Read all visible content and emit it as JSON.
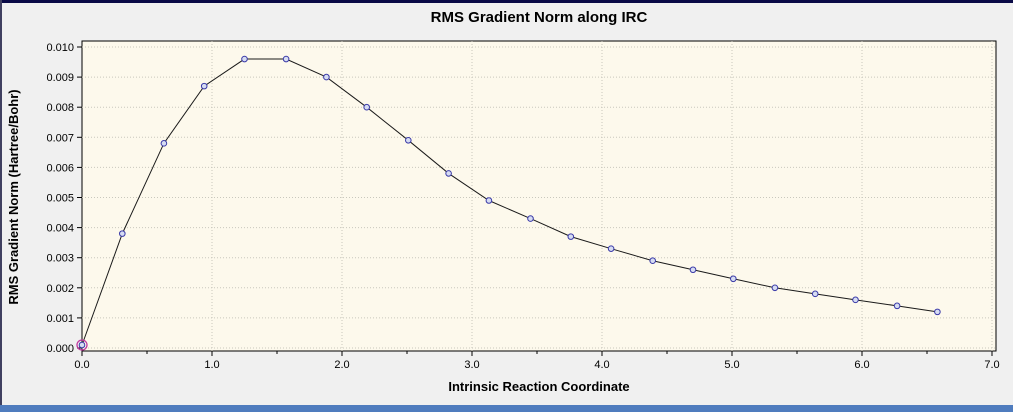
{
  "window": {
    "background": "#f0f0f0",
    "top_border_color": "#0a0a46",
    "left_border_color": "#404060",
    "bottom_bar_color": "#4f7cbe"
  },
  "chart": {
    "title": "RMS Gradient Norm along IRC",
    "xlabel": "Intrinsic Reaction Coordinate",
    "ylabel": "RMS Gradient Norm (Hartree/Bohr)"
  },
  "chart_data": {
    "type": "line",
    "title": "RMS Gradient Norm along IRC",
    "xlabel": "Intrinsic Reaction Coordinate",
    "ylabel": "RMS Gradient Norm (Hartree/Bohr)",
    "xlim": [
      0.0,
      7.0
    ],
    "ylim": [
      0.0,
      0.01
    ],
    "xticks": [
      0.0,
      1.0,
      2.0,
      3.0,
      4.0,
      5.0,
      6.0,
      7.0
    ],
    "xtick_labels": [
      "0.0",
      "1.0",
      "2.0",
      "3.0",
      "4.0",
      "5.0",
      "6.0",
      "7.0"
    ],
    "yticks": [
      0.0,
      0.001,
      0.002,
      0.003,
      0.004,
      0.005,
      0.006,
      0.007,
      0.008,
      0.009,
      0.01
    ],
    "ytick_labels": [
      "0.000",
      "0.001",
      "0.002",
      "0.003",
      "0.004",
      "0.005",
      "0.006",
      "0.007",
      "0.008",
      "0.009",
      "0.010"
    ],
    "grid": true,
    "legend": null,
    "plot_bg": "#fdf9ec",
    "grid_color": "#c9c8bd",
    "line_color": "#1a1a1a",
    "marker_stroke": "#3a3aa8",
    "marker_fill": "#d6dcf2",
    "highlight_stroke": "#c0399f",
    "highlighted_index": 0,
    "x": [
      0.0,
      0.31,
      0.63,
      0.94,
      1.25,
      1.57,
      1.88,
      2.19,
      2.51,
      2.82,
      3.13,
      3.45,
      3.76,
      4.07,
      4.39,
      4.7,
      5.01,
      5.33,
      5.64,
      5.95,
      6.27,
      6.58
    ],
    "y": [
      0.0001,
      0.0038,
      0.0068,
      0.0087,
      0.0096,
      0.0096,
      0.009,
      0.008,
      0.0069,
      0.0058,
      0.0049,
      0.0043,
      0.0037,
      0.0033,
      0.0029,
      0.0026,
      0.0023,
      0.002,
      0.0018,
      0.0016,
      0.0014,
      0.0012
    ]
  }
}
